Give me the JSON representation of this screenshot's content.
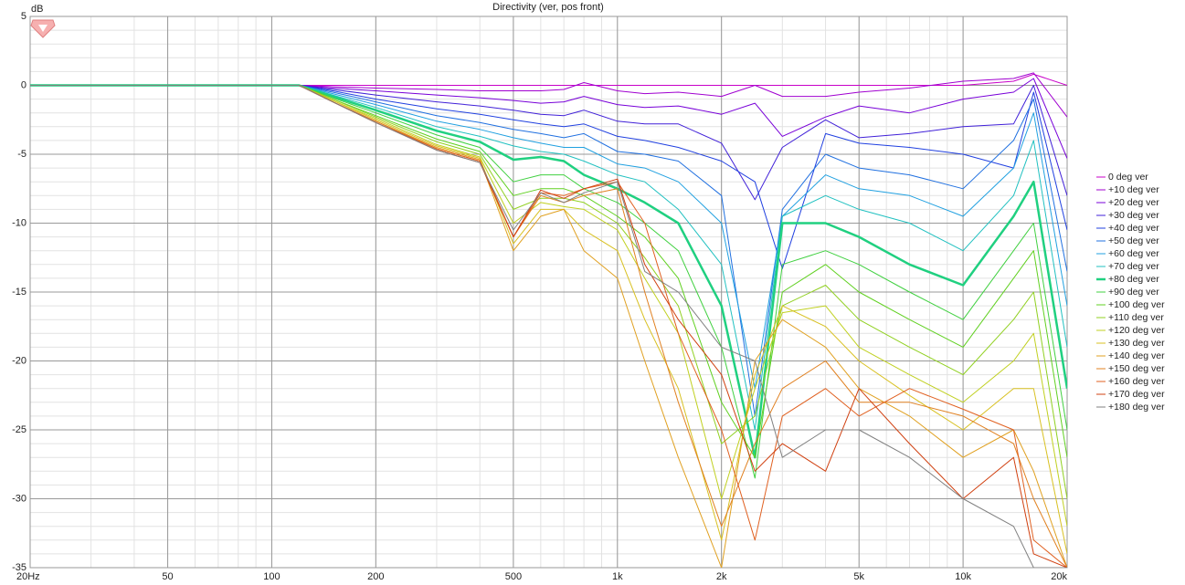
{
  "chart_data": {
    "type": "line",
    "title": "Directivity (ver, pos front)",
    "y_label": "dB",
    "xscale": "log",
    "grid": true,
    "legend": "right",
    "xlim": [
      20,
      20000
    ],
    "ylim": [
      -35,
      5
    ],
    "xticks": [
      {
        "value": 20,
        "label": "20Hz"
      },
      50,
      100,
      200,
      500,
      {
        "value": 1000,
        "label": "1k"
      },
      {
        "value": 2000,
        "label": "2k"
      },
      {
        "value": 5000,
        "label": "5k"
      },
      {
        "value": 10000,
        "label": "10k"
      },
      {
        "value": 20000,
        "label": "20k"
      }
    ],
    "yticks": [
      5,
      0,
      -5,
      -10,
      -15,
      -20,
      -25,
      -30,
      -35
    ],
    "x": [
      20,
      50,
      100,
      120,
      150,
      200,
      300,
      400,
      500,
      600,
      700,
      800,
      1000,
      1200,
      1500,
      2000,
      2500,
      3000,
      4000,
      5000,
      7000,
      10000,
      14000,
      16000,
      20000
    ],
    "series": [
      {
        "name": "0 deg ver",
        "color": "#c800c8",
        "values": [
          0,
          0,
          0,
          0,
          0,
          0,
          0,
          0,
          0,
          0,
          0,
          0,
          0,
          0,
          0,
          0,
          0,
          0,
          0,
          0,
          0,
          0,
          0.3,
          0.8,
          0
        ]
      },
      {
        "name": "+10 deg ver",
        "color": "#a000d0",
        "values": [
          0,
          0,
          0,
          0,
          -0.1,
          -0.2,
          -0.3,
          -0.4,
          -0.4,
          -0.4,
          -0.3,
          0.2,
          -0.4,
          -0.6,
          -0.5,
          -0.8,
          0,
          -0.8,
          -0.8,
          -0.5,
          -0.2,
          0.3,
          0.5,
          0.9,
          -2.3
        ]
      },
      {
        "name": "+20 deg ver",
        "color": "#7800d8",
        "values": [
          0,
          0,
          0,
          0,
          -0.2,
          -0.4,
          -0.7,
          -0.9,
          -1.1,
          -1.3,
          -1.2,
          -0.8,
          -1.4,
          -1.6,
          -1.5,
          -2.1,
          -1.3,
          -3.7,
          -2.3,
          -1.5,
          -2,
          -1,
          -0.5,
          0.5,
          -5.3
        ]
      },
      {
        "name": "+30 deg ver",
        "color": "#4020d8",
        "values": [
          0,
          0,
          0,
          0,
          -0.3,
          -0.7,
          -1.2,
          -1.5,
          -1.8,
          -2.1,
          -2.2,
          -1.8,
          -2.6,
          -2.8,
          -2.8,
          -4.2,
          -8.3,
          -4.5,
          -2.5,
          -3.8,
          -3.5,
          -3,
          -2.8,
          0,
          -8
        ]
      },
      {
        "name": "+40 deg ver",
        "color": "#2040e0",
        "values": [
          0,
          0,
          0,
          0,
          -0.4,
          -1,
          -1.7,
          -2.1,
          -2.5,
          -2.8,
          -3,
          -2.8,
          -3.7,
          -4,
          -4.5,
          -5.5,
          -7,
          -13.3,
          -3.5,
          -4.2,
          -4.5,
          -5,
          -6,
          -0.5,
          -10.5
        ]
      },
      {
        "name": "+50 deg ver",
        "color": "#2070e0",
        "values": [
          0,
          0,
          0,
          0,
          -0.5,
          -1.2,
          -2.2,
          -2.7,
          -3.2,
          -3.5,
          -3.8,
          -3.5,
          -4.8,
          -5,
          -5.5,
          -8,
          -24,
          -9,
          -5,
          -6,
          -6.5,
          -7.5,
          -4,
          -1,
          -13.5
        ]
      },
      {
        "name": "+60 deg ver",
        "color": "#20a0e0",
        "values": [
          0,
          0,
          0,
          0,
          -0.6,
          -1.4,
          -2.6,
          -3.2,
          -3.8,
          -4.2,
          -4.5,
          -4.5,
          -5.7,
          -6,
          -7,
          -10,
          -22,
          -9.5,
          -6.5,
          -7.5,
          -8,
          -9.5,
          -6,
          -2,
          -16
        ]
      },
      {
        "name": "+70 deg ver",
        "color": "#20c0c0",
        "values": [
          0,
          0,
          0,
          0,
          -0.7,
          -1.6,
          -3,
          -3.7,
          -4.4,
          -4.8,
          -5,
          -5.5,
          -6.5,
          -7,
          -9,
          -13,
          -25,
          -9.5,
          -8,
          -9,
          -10,
          -12,
          -8,
          -4,
          -19
        ]
      },
      {
        "name": "+80 deg ver",
        "color": "#20d080",
        "line_width": 2.5,
        "values": [
          0,
          0,
          0,
          0,
          -0.8,
          -1.8,
          -3.3,
          -4.1,
          -5.4,
          -5.2,
          -5.5,
          -6.5,
          -7.5,
          -8.5,
          -10,
          -16,
          -27,
          -10,
          -10,
          -11,
          -13,
          -14.5,
          -9.5,
          -7,
          -22
        ]
      },
      {
        "name": "+90 deg ver",
        "color": "#40d040",
        "values": [
          0,
          0,
          0,
          0,
          -0.9,
          -2,
          -3.6,
          -4.5,
          -7,
          -6.5,
          -6.5,
          -7.5,
          -8.5,
          -10,
          -12,
          -19,
          -28.5,
          -13,
          -12,
          -13,
          -15,
          -17,
          -12,
          -10,
          -25
        ]
      },
      {
        "name": "+100 deg ver",
        "color": "#60d020",
        "values": [
          0,
          0,
          0,
          0,
          -1,
          -2.2,
          -3.9,
          -4.8,
          -8,
          -7.5,
          -7.5,
          -8,
          -9.5,
          -11,
          -14,
          -23,
          -27,
          -15,
          -13,
          -15,
          -17,
          -19,
          -14,
          -12,
          -27
        ]
      },
      {
        "name": "+110 deg ver",
        "color": "#90d020",
        "values": [
          0,
          0,
          0,
          0,
          -1,
          -2.3,
          -4.1,
          -5,
          -9,
          -8.2,
          -8.2,
          -8.5,
          -10,
          -12.5,
          -16,
          -26,
          -24,
          -16,
          -14.5,
          -17,
          -19,
          -21,
          -17,
          -15,
          -30
        ]
      },
      {
        "name": "+120 deg ver",
        "color": "#c0d020",
        "values": [
          0,
          0,
          0,
          0,
          -1.1,
          -2.4,
          -4.3,
          -5.2,
          -10,
          -8.5,
          -8.8,
          -9,
          -10.5,
          -14,
          -18,
          -30,
          -22,
          -16.5,
          -16,
          -19,
          -21,
          -23,
          -20,
          -18,
          -32
        ]
      },
      {
        "name": "+130 deg ver",
        "color": "#d8c020",
        "values": [
          0,
          0,
          0,
          0,
          -1.1,
          -2.5,
          -4.4,
          -5.3,
          -11.5,
          -9,
          -9,
          -10.5,
          -12,
          -17,
          -22,
          -33,
          -21,
          -16,
          -17.5,
          -20,
          -22.5,
          -25,
          -22,
          -22,
          -34
        ]
      },
      {
        "name": "+140 deg ver",
        "color": "#e0a020",
        "values": [
          0,
          0,
          0,
          0,
          -1.2,
          -2.6,
          -4.5,
          -5.4,
          -12,
          -9.5,
          -9,
          -12,
          -14,
          -20,
          -27,
          -35,
          -20,
          -17,
          -19,
          -22,
          -24,
          -27,
          -25,
          -28,
          -35
        ]
      },
      {
        "name": "+150 deg ver",
        "color": "#e08020",
        "values": [
          0,
          0,
          0,
          0,
          -1.2,
          -2.6,
          -4.6,
          -5.5,
          -11,
          -8,
          -8.5,
          -8,
          -7.5,
          -15,
          -23,
          -32,
          -26,
          -22,
          -20,
          -23,
          -23,
          -24,
          -26,
          -30,
          -35
        ]
      },
      {
        "name": "+160 deg ver",
        "color": "#e06020",
        "values": [
          0,
          0,
          0,
          0,
          -1.2,
          -2.7,
          -4.6,
          -5.5,
          -11,
          -7.8,
          -8,
          -7.5,
          -7,
          -10,
          -18,
          -25,
          -33,
          -24,
          -22,
          -24,
          -22,
          -23.5,
          -25,
          -33,
          -35
        ]
      },
      {
        "name": "+170 deg ver",
        "color": "#d04010",
        "values": [
          0,
          0,
          0,
          0,
          -1.2,
          -2.7,
          -4.7,
          -5.6,
          -11,
          -7.6,
          -8.2,
          -7.5,
          -6.8,
          -13,
          -17,
          -21,
          -28,
          -26,
          -28,
          -22,
          -26,
          -30,
          -27,
          -34,
          -35
        ]
      },
      {
        "name": "+180 deg ver",
        "color": "#808080",
        "values": [
          0,
          0,
          0,
          0,
          -1.2,
          -2.7,
          -4.7,
          -5.6,
          -10.5,
          -7.8,
          -8.5,
          -7.8,
          -7,
          -13.5,
          -15,
          -19,
          -20,
          -27,
          -25,
          -25,
          -27,
          -30,
          -32,
          -35,
          -35
        ]
      }
    ]
  }
}
